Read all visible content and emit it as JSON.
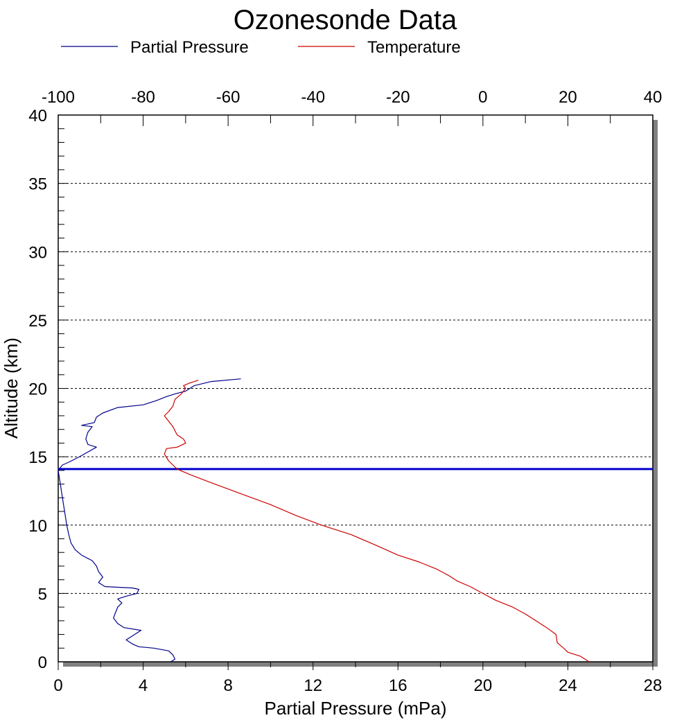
{
  "chart_data": {
    "type": "line",
    "title": "Ozonesonde Data",
    "xlabel": "Partial Pressure (mPa)",
    "ylabel": "Altitude (km)",
    "xlim": [
      0,
      28
    ],
    "ylim": [
      0,
      40
    ],
    "x2lim": [
      -100,
      40
    ],
    "x_ticks": [
      0,
      4,
      8,
      12,
      16,
      20,
      24,
      28
    ],
    "x2_ticks": [
      -100,
      -80,
      -60,
      -40,
      -20,
      0,
      20,
      40
    ],
    "y_ticks": [
      0,
      5,
      10,
      15,
      20,
      25,
      30,
      35,
      40
    ],
    "grid": "horizontal-dashed",
    "legend_position": "top",
    "reference_line": {
      "altitude": 14.1,
      "color": "#0000cc"
    },
    "series": [
      {
        "name": "Partial Pressure",
        "axis": "bottom",
        "color": "#00008b",
        "points": [
          [
            5.3,
            0.0
          ],
          [
            5.5,
            0.2
          ],
          [
            5.4,
            0.5
          ],
          [
            5.2,
            0.8
          ],
          [
            4.5,
            1.0
          ],
          [
            3.8,
            1.1
          ],
          [
            3.5,
            1.3
          ],
          [
            3.2,
            1.6
          ],
          [
            3.4,
            1.8
          ],
          [
            3.9,
            2.3
          ],
          [
            3.1,
            2.5
          ],
          [
            2.8,
            2.8
          ],
          [
            2.6,
            3.2
          ],
          [
            2.7,
            3.6
          ],
          [
            2.8,
            4.0
          ],
          [
            3.0,
            4.3
          ],
          [
            2.8,
            4.6
          ],
          [
            3.2,
            4.8
          ],
          [
            3.7,
            5.0
          ],
          [
            3.8,
            5.3
          ],
          [
            3.5,
            5.4
          ],
          [
            2.2,
            5.5
          ],
          [
            1.9,
            5.8
          ],
          [
            2.1,
            6.2
          ],
          [
            1.9,
            6.6
          ],
          [
            1.8,
            7.0
          ],
          [
            1.6,
            7.4
          ],
          [
            1.1,
            7.8
          ],
          [
            0.8,
            8.2
          ],
          [
            0.6,
            8.7
          ],
          [
            0.5,
            9.3
          ],
          [
            0.4,
            10.0
          ],
          [
            0.3,
            11.0
          ],
          [
            0.2,
            12.0
          ],
          [
            0.1,
            13.0
          ],
          [
            0.0,
            14.0
          ],
          [
            0.2,
            14.4
          ],
          [
            0.5,
            14.6
          ],
          [
            1.0,
            15.0
          ],
          [
            1.8,
            15.7
          ],
          [
            1.4,
            15.9
          ],
          [
            1.3,
            16.3
          ],
          [
            1.4,
            16.8
          ],
          [
            1.6,
            17.2
          ],
          [
            1.1,
            17.3
          ],
          [
            1.7,
            17.5
          ],
          [
            1.8,
            17.9
          ],
          [
            2.1,
            18.2
          ],
          [
            2.8,
            18.6
          ],
          [
            4.0,
            18.8
          ],
          [
            4.6,
            19.1
          ],
          [
            5.1,
            19.4
          ],
          [
            5.5,
            19.6
          ],
          [
            6.0,
            19.8
          ],
          [
            6.4,
            20.2
          ],
          [
            7.2,
            20.5
          ],
          [
            8.6,
            20.7
          ]
        ]
      },
      {
        "name": "Temperature",
        "axis": "top",
        "color": "#cc0000",
        "points": [
          [
            25.0,
            0.0
          ],
          [
            23.0,
            0.4
          ],
          [
            20.0,
            0.7
          ],
          [
            19.0,
            1.0
          ],
          [
            17.5,
            1.4
          ],
          [
            17.2,
            2.0
          ],
          [
            15.0,
            2.5
          ],
          [
            12.0,
            3.1
          ],
          [
            10.0,
            3.5
          ],
          [
            7.0,
            4.0
          ],
          [
            3.0,
            4.5
          ],
          [
            0.0,
            5.0
          ],
          [
            -3.0,
            5.5
          ],
          [
            -6.0,
            5.9
          ],
          [
            -8.0,
            6.3
          ],
          [
            -11.0,
            6.8
          ],
          [
            -15.0,
            7.3
          ],
          [
            -20.0,
            7.8
          ],
          [
            -25.0,
            8.5
          ],
          [
            -31.0,
            9.3
          ],
          [
            -38.0,
            10.0
          ],
          [
            -44.0,
            10.7
          ],
          [
            -50.0,
            11.5
          ],
          [
            -57.0,
            12.3
          ],
          [
            -64.0,
            13.1
          ],
          [
            -69.0,
            13.7
          ],
          [
            -72.0,
            14.1
          ],
          [
            -74.0,
            14.7
          ],
          [
            -75.0,
            15.2
          ],
          [
            -74.5,
            15.6
          ],
          [
            -72.0,
            15.7
          ],
          [
            -70.0,
            16.0
          ],
          [
            -70.5,
            16.3
          ],
          [
            -72.0,
            16.6
          ],
          [
            -73.0,
            17.2
          ],
          [
            -74.0,
            17.6
          ],
          [
            -75.0,
            18.0
          ],
          [
            -74.0,
            18.3
          ],
          [
            -73.0,
            18.7
          ],
          [
            -72.5,
            19.2
          ],
          [
            -71.0,
            19.6
          ],
          [
            -70.0,
            20.0
          ],
          [
            -70.5,
            20.2
          ],
          [
            -69.0,
            20.4
          ],
          [
            -67.0,
            20.6
          ]
        ]
      }
    ]
  }
}
